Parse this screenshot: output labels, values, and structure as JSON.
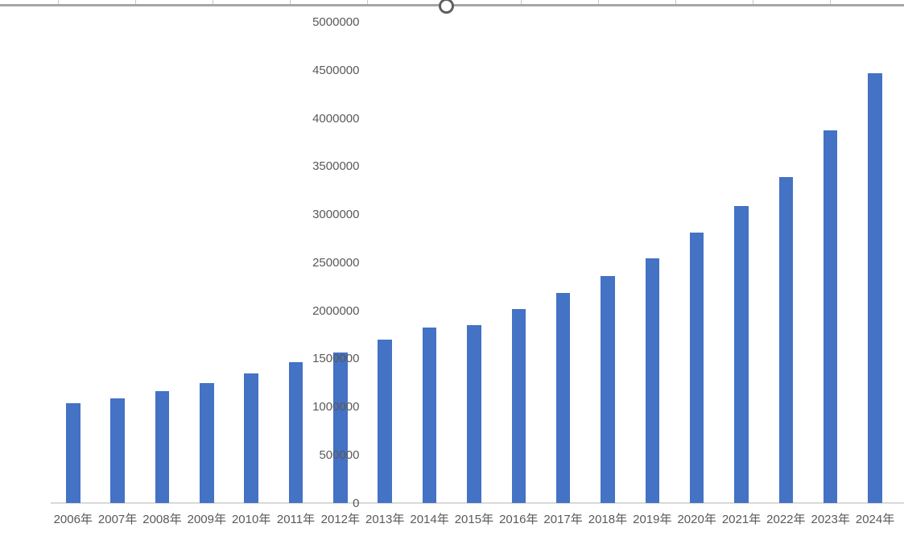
{
  "colors": {
    "background": "#FFFFFF",
    "bar_fill": "#4472C4",
    "axis_line": "#D9D9D9",
    "axis_text": "#595959",
    "selection_border": "#A6A6A6",
    "resize_handle_ring": "#5F5F5F",
    "column_separator_tick": "#C9C7C7"
  },
  "selection": {
    "state": "chart object selected",
    "visible_handles": [
      "top-center"
    ]
  },
  "chart_data": {
    "type": "bar",
    "orientation": "vertical",
    "title": "",
    "xlabel": "",
    "ylabel": "",
    "legend_position": "none",
    "grid": false,
    "categories": [
      "2006年",
      "2007年",
      "2008年",
      "2009年",
      "2010年",
      "2011年",
      "2012年",
      "2013年",
      "2014年",
      "2015年",
      "2016年",
      "2017年",
      "2018年",
      "2019年",
      "2020年",
      "2021年",
      "2022年",
      "2023年",
      "2024年"
    ],
    "values": [
      1040000,
      1090000,
      1170000,
      1250000,
      1350000,
      1470000,
      1570000,
      1700000,
      1830000,
      1850000,
      2020000,
      2190000,
      2360000,
      2550000,
      2820000,
      3090000,
      3390000,
      3880000,
      4470000
    ],
    "ylim": [
      0,
      5000000
    ],
    "ytick_step": 500000,
    "yticks": [
      0,
      500000,
      1000000,
      1500000,
      2000000,
      2500000,
      3000000,
      3500000,
      4000000,
      4500000,
      5000000
    ],
    "y_axis_labels_clipped_left": true
  }
}
